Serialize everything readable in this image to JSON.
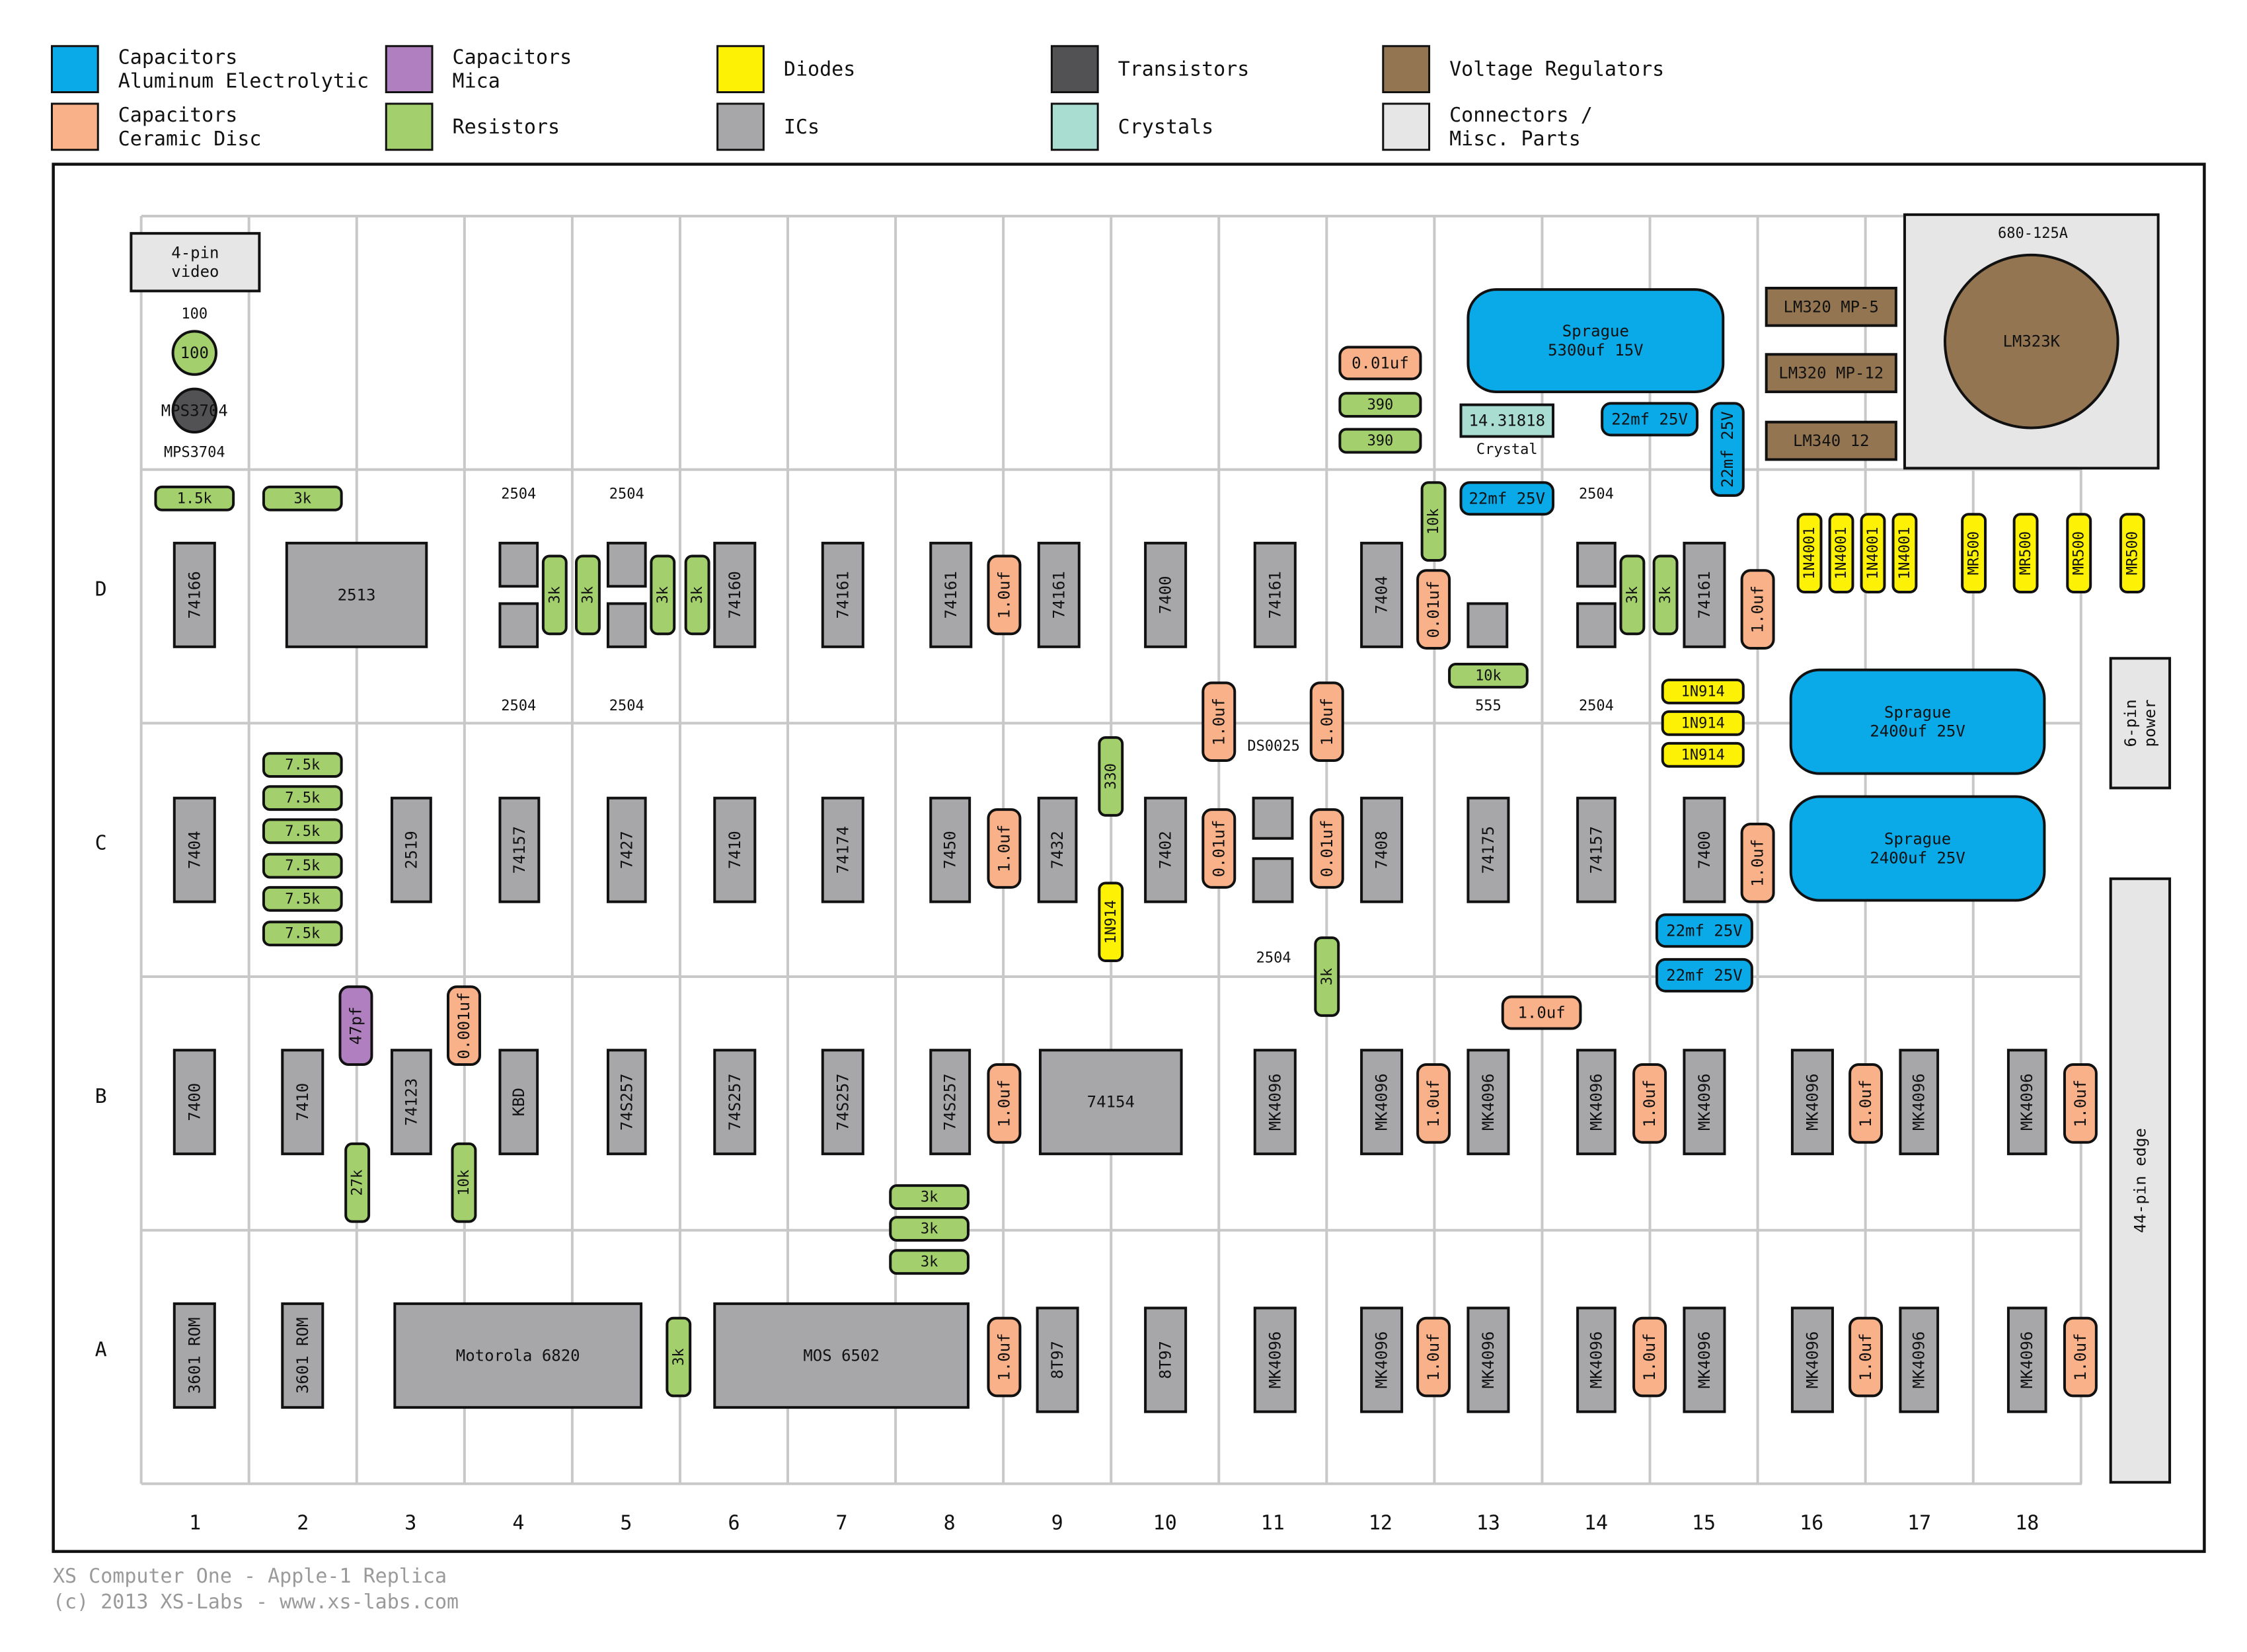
{
  "colors": {
    "capacitor_electrolytic": "#0aa9e8",
    "capacitor_ceramic": "#f9b189",
    "capacitor_mica": "#b07fbf",
    "resistor": "#a3cf6d",
    "diode": "#fdf105",
    "ic": "#a7a7aa",
    "transistor": "#525255",
    "crystal": "#a9ddd1",
    "voltage_regulator": "#947551",
    "connector": "#e6e6e6",
    "grid_line": "#c8c8c8",
    "footer_text": "#9a9a9a"
  },
  "legend": [
    {
      "lines": [
        "Capacitors",
        "Aluminum Electrolytic"
      ],
      "kind": "capacitor_electrolytic"
    },
    {
      "lines": [
        "Capacitors",
        "Ceramic Disc"
      ],
      "kind": "capacitor_ceramic"
    },
    {
      "lines": [
        "Capacitors",
        "Mica"
      ],
      "kind": "capacitor_mica"
    },
    {
      "lines": [
        "Resistors"
      ],
      "kind": "resistor"
    },
    {
      "lines": [
        "Diodes"
      ],
      "kind": "diode"
    },
    {
      "lines": [
        "ICs"
      ],
      "kind": "ic"
    },
    {
      "lines": [
        "Transistors"
      ],
      "kind": "transistor"
    },
    {
      "lines": [
        "Crystals"
      ],
      "kind": "crystal"
    },
    {
      "lines": [
        "Voltage Regulators"
      ],
      "kind": "voltage_regulator"
    },
    {
      "lines": [
        "Connectors /",
        "Misc. Parts"
      ],
      "kind": "connector"
    }
  ],
  "board": {
    "rows": [
      "D",
      "C",
      "B",
      "A"
    ],
    "columns": [
      "1",
      "2",
      "3",
      "4",
      "5",
      "6",
      "7",
      "8",
      "9",
      "10",
      "11",
      "12",
      "13",
      "14",
      "15",
      "16",
      "17",
      "18"
    ],
    "components": [
      {
        "kind": "connector",
        "label": "4-pin\nvideo"
      },
      {
        "kind": "resistor",
        "label": "100"
      },
      {
        "kind": "transistor",
        "label": "MPS3704"
      },
      {
        "kind": "resistor",
        "label": "1.5k"
      },
      {
        "kind": "resistor",
        "label": "3k"
      },
      {
        "kind": "ic",
        "label": "74166"
      },
      {
        "kind": "ic",
        "label": "2513"
      },
      {
        "kind": "ic",
        "label": "74160"
      },
      {
        "kind": "ic",
        "label": "74161"
      },
      {
        "kind": "ic",
        "label": "74161"
      },
      {
        "kind": "ic",
        "label": "74161"
      },
      {
        "kind": "ic",
        "label": "7400"
      },
      {
        "kind": "ic",
        "label": "74161"
      },
      {
        "kind": "ic",
        "label": "7404"
      },
      {
        "kind": "ic",
        "label": "74161"
      },
      {
        "kind": "ic",
        "label": ""
      },
      {
        "kind": "ic",
        "label": ""
      },
      {
        "kind": "ic",
        "label": ""
      },
      {
        "kind": "ic",
        "label": ""
      },
      {
        "kind": "ic",
        "label": ""
      },
      {
        "kind": "ic",
        "label": ""
      },
      {
        "kind": "ic",
        "label": ""
      },
      {
        "kind": "ic",
        "label": ""
      },
      {
        "kind": "ic",
        "label": ""
      },
      {
        "kind": "ic",
        "label": ""
      },
      {
        "kind": "ic",
        "label": ""
      },
      {
        "kind": "resistor",
        "label": "3k"
      },
      {
        "kind": "resistor",
        "label": "3k"
      },
      {
        "kind": "resistor",
        "label": "3k"
      },
      {
        "kind": "resistor",
        "label": "3k"
      },
      {
        "kind": "resistor",
        "label": "3k"
      },
      {
        "kind": "resistor",
        "label": "3k"
      },
      {
        "kind": "capacitor_ceramic",
        "label": "1.0uf"
      },
      {
        "kind": "capacitor_ceramic",
        "label": "0.01uf"
      },
      {
        "kind": "capacitor_ceramic",
        "label": "1.0uf"
      },
      {
        "kind": "capacitor_ceramic",
        "label": "0.01uf"
      },
      {
        "kind": "resistor",
        "label": "390"
      },
      {
        "kind": "resistor",
        "label": "390"
      },
      {
        "kind": "crystal",
        "label": "14.31818"
      },
      {
        "kind": "resistor",
        "label": "10k"
      },
      {
        "kind": "resistor",
        "label": "10k"
      },
      {
        "kind": "capacitor_electrolytic",
        "label": "Sprague\n5300uf 15V"
      },
      {
        "kind": "capacitor_electrolytic",
        "label": "22mf 25V"
      },
      {
        "kind": "capacitor_electrolytic",
        "label": "22mf 25V"
      },
      {
        "kind": "capacitor_electrolytic",
        "label": "22mf 25V"
      },
      {
        "kind": "voltage_regulator",
        "label": "LM320 MP-5"
      },
      {
        "kind": "voltage_regulator",
        "label": "LM320 MP-12"
      },
      {
        "kind": "voltage_regulator",
        "label": "LM340 12"
      },
      {
        "kind": "connector",
        "label": ""
      },
      {
        "kind": "voltage_regulator",
        "label": "LM323K"
      },
      {
        "kind": "diode",
        "label": "1N4001"
      },
      {
        "kind": "diode",
        "label": "1N4001"
      },
      {
        "kind": "diode",
        "label": "1N4001"
      },
      {
        "kind": "diode",
        "label": "1N4001"
      },
      {
        "kind": "diode",
        "label": "MR500"
      },
      {
        "kind": "diode",
        "label": "MR500"
      },
      {
        "kind": "diode",
        "label": "MR500"
      },
      {
        "kind": "diode",
        "label": "MR500"
      },
      {
        "kind": "diode",
        "label": "1N914"
      },
      {
        "kind": "diode",
        "label": "1N914"
      },
      {
        "kind": "diode",
        "label": "1N914"
      },
      {
        "kind": "capacitor_electrolytic",
        "label": "Sprague\n2400uf 25V"
      },
      {
        "kind": "capacitor_electrolytic",
        "label": "Sprague\n2400uf 25V"
      },
      {
        "kind": "connector",
        "label": "6-pin\npower"
      },
      {
        "kind": "connector",
        "label": "44-pin edge"
      },
      {
        "kind": "resistor",
        "label": "7.5k"
      },
      {
        "kind": "resistor",
        "label": "7.5k"
      },
      {
        "kind": "resistor",
        "label": "7.5k"
      },
      {
        "kind": "resistor",
        "label": "7.5k"
      },
      {
        "kind": "resistor",
        "label": "7.5k"
      },
      {
        "kind": "resistor",
        "label": "7.5k"
      },
      {
        "kind": "ic",
        "label": "7404"
      },
      {
        "kind": "ic",
        "label": "2519"
      },
      {
        "kind": "ic",
        "label": "74157"
      },
      {
        "kind": "ic",
        "label": "7427"
      },
      {
        "kind": "ic",
        "label": "7410"
      },
      {
        "kind": "ic",
        "label": "74174"
      },
      {
        "kind": "ic",
        "label": "7450"
      },
      {
        "kind": "capacitor_ceramic",
        "label": "1.0uf"
      },
      {
        "kind": "ic",
        "label": "7432"
      },
      {
        "kind": "resistor",
        "label": "330"
      },
      {
        "kind": "diode",
        "label": "1N914"
      },
      {
        "kind": "ic",
        "label": "7402"
      },
      {
        "kind": "capacitor_ceramic",
        "label": "1.0uf"
      },
      {
        "kind": "capacitor_ceramic",
        "label": "0.01uf"
      },
      {
        "kind": "ic",
        "label": ""
      },
      {
        "kind": "ic",
        "label": ""
      },
      {
        "kind": "capacitor_ceramic",
        "label": "1.0uf"
      },
      {
        "kind": "capacitor_ceramic",
        "label": "0.01uf"
      },
      {
        "kind": "ic",
        "label": "7408"
      },
      {
        "kind": "ic",
        "label": "74175"
      },
      {
        "kind": "ic",
        "label": "74157"
      },
      {
        "kind": "ic",
        "label": "7400"
      },
      {
        "kind": "capacitor_ceramic",
        "label": "1.0uf"
      },
      {
        "kind": "capacitor_electrolytic",
        "label": "22mf 25V"
      },
      {
        "kind": "capacitor_electrolytic",
        "label": "22mf 25V"
      },
      {
        "kind": "resistor",
        "label": "3k"
      },
      {
        "kind": "capacitor_ceramic",
        "label": "1.0uf"
      },
      {
        "kind": "ic",
        "label": "7400"
      },
      {
        "kind": "ic",
        "label": "7410"
      },
      {
        "kind": "capacitor_mica",
        "label": "47pf"
      },
      {
        "kind": "resistor",
        "label": "27k"
      },
      {
        "kind": "ic",
        "label": "74123"
      },
      {
        "kind": "capacitor_ceramic",
        "label": "0.001uf"
      },
      {
        "kind": "resistor",
        "label": "10k"
      },
      {
        "kind": "ic",
        "label": "KBD"
      },
      {
        "kind": "ic",
        "label": "74S257"
      },
      {
        "kind": "ic",
        "label": "74S257"
      },
      {
        "kind": "ic",
        "label": "74S257"
      },
      {
        "kind": "ic",
        "label": "74S257"
      },
      {
        "kind": "capacitor_ceramic",
        "label": "1.0uf"
      },
      {
        "kind": "ic",
        "label": "74154"
      },
      {
        "kind": "ic",
        "label": "MK4096"
      },
      {
        "kind": "ic",
        "label": "MK4096"
      },
      {
        "kind": "capacitor_ceramic",
        "label": "1.0uf"
      },
      {
        "kind": "ic",
        "label": "MK4096"
      },
      {
        "kind": "ic",
        "label": "MK4096"
      },
      {
        "kind": "capacitor_ceramic",
        "label": "1.0uf"
      },
      {
        "kind": "ic",
        "label": "MK4096"
      },
      {
        "kind": "ic",
        "label": "MK4096"
      },
      {
        "kind": "capacitor_ceramic",
        "label": "1.0uf"
      },
      {
        "kind": "ic",
        "label": "MK4096"
      },
      {
        "kind": "ic",
        "label": "MK4096"
      },
      {
        "kind": "capacitor_ceramic",
        "label": "1.0uf"
      },
      {
        "kind": "resistor",
        "label": "3k"
      },
      {
        "kind": "resistor",
        "label": "3k"
      },
      {
        "kind": "resistor",
        "label": "3k"
      },
      {
        "kind": "ic",
        "label": "3601 ROM"
      },
      {
        "kind": "ic",
        "label": "3601 ROM"
      },
      {
        "kind": "ic",
        "label": "Motorola 6820"
      },
      {
        "kind": "resistor",
        "label": "3k"
      },
      {
        "kind": "ic",
        "label": "MOS 6502"
      },
      {
        "kind": "capacitor_ceramic",
        "label": "1.0uf"
      },
      {
        "kind": "ic",
        "label": "8T97"
      },
      {
        "kind": "ic",
        "label": "8T97"
      },
      {
        "kind": "ic",
        "label": "MK4096"
      },
      {
        "kind": "ic",
        "label": "MK4096"
      },
      {
        "kind": "capacitor_ceramic",
        "label": "1.0uf"
      },
      {
        "kind": "ic",
        "label": "MK4096"
      },
      {
        "kind": "ic",
        "label": "MK4096"
      },
      {
        "kind": "capacitor_ceramic",
        "label": "1.0uf"
      },
      {
        "kind": "ic",
        "label": "MK4096"
      },
      {
        "kind": "ic",
        "label": "MK4096"
      },
      {
        "kind": "capacitor_ceramic",
        "label": "1.0uf"
      },
      {
        "kind": "ic",
        "label": "MK4096"
      },
      {
        "kind": "ic",
        "label": "MK4096"
      },
      {
        "kind": "capacitor_ceramic",
        "label": "1.0uf"
      }
    ],
    "annotations": [
      "2504",
      "2504",
      "2504",
      "2504",
      "2504",
      "2504",
      "2504",
      "2504",
      "DS0025",
      "555",
      "Crystal",
      "680-125A"
    ]
  },
  "footer": {
    "line1": "XS Computer One - Apple-1 Replica",
    "line2": "(c) 2013 XS-Labs - www.xs-labs.com"
  }
}
